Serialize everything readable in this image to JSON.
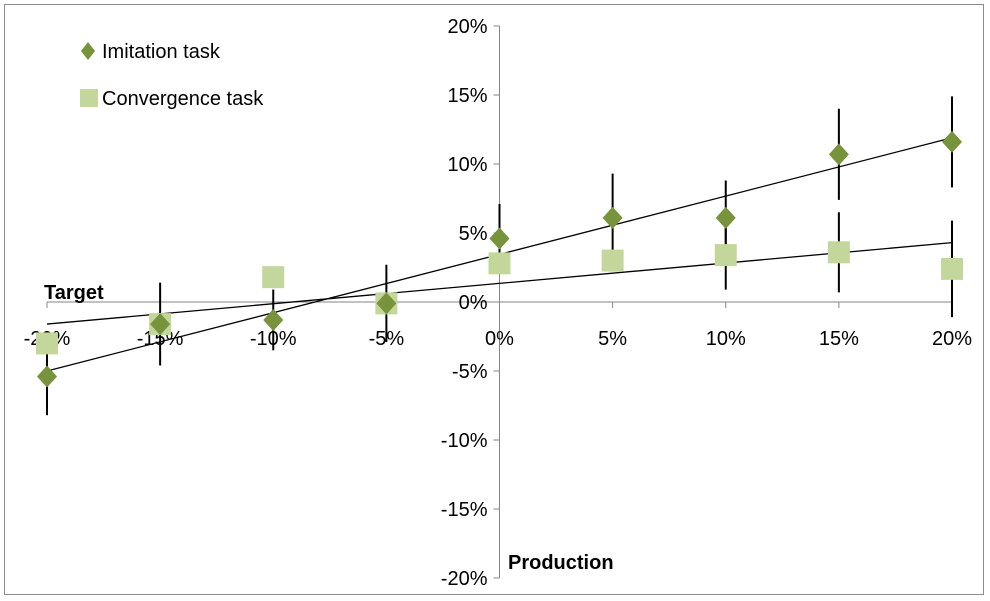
{
  "chart_data": {
    "type": "scatter",
    "x_ticks": [
      "-20%",
      "-15%",
      "-10%",
      "-5%",
      "0%",
      "5%",
      "10%",
      "15%",
      "20%"
    ],
    "y_ticks": [
      "20%",
      "15%",
      "10%",
      "5%",
      "0%",
      "-5%",
      "-10%",
      "-15%",
      "-20%"
    ],
    "xlim": [
      -20,
      20
    ],
    "ylim": [
      -20,
      20
    ],
    "xlabel": "Production",
    "ylabel": "Target",
    "grid": false,
    "legend_position": "top-left",
    "series": [
      {
        "name": "Imitation task",
        "marker": "diamond",
        "color": "#77933c",
        "x": [
          -20,
          -15,
          -10,
          -5,
          0,
          5,
          10,
          15,
          20
        ],
        "y": [
          -5.4,
          -1.6,
          -1.3,
          -0.1,
          4.6,
          6.1,
          6.1,
          10.7,
          11.6
        ],
        "error": [
          2.8,
          3.0,
          2.2,
          0,
          2.5,
          3.2,
          2.7,
          3.3,
          3.3
        ],
        "trendline": {
          "start": [
            -20,
            -5.0
          ],
          "end": [
            20,
            11.9
          ]
        }
      },
      {
        "name": "Convergence task",
        "marker": "square",
        "color": "#c3d69b",
        "x": [
          -20,
          -15,
          -10,
          -5,
          0,
          5,
          10,
          15,
          20
        ],
        "y": [
          -3.0,
          -1.6,
          1.8,
          -0.1,
          2.8,
          3.0,
          3.4,
          3.6,
          2.4
        ],
        "error": [
          0,
          0,
          0,
          2.8,
          0,
          0,
          2.5,
          2.9,
          3.5
        ],
        "trendline": {
          "start": [
            -20,
            -1.6
          ],
          "end": [
            20,
            4.3
          ]
        }
      }
    ]
  }
}
